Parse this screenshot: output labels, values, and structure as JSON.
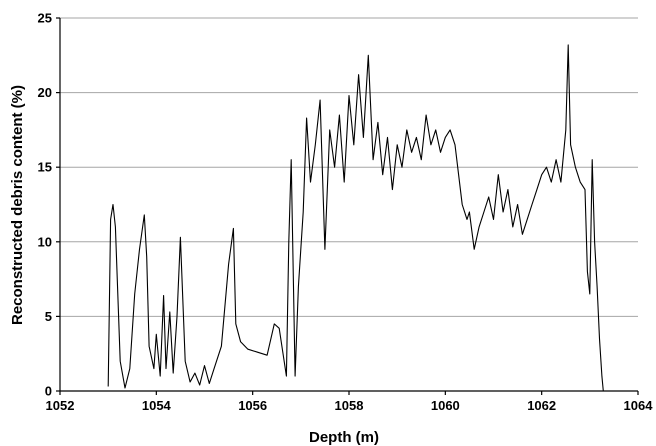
{
  "chart_data": {
    "type": "line",
    "title": "",
    "xlabel": "Depth (m)",
    "ylabel": "Reconstructed debris content (%)",
    "xlim": [
      1052,
      1064
    ],
    "ylim": [
      0,
      25
    ],
    "xticks": [
      1052,
      1054,
      1056,
      1058,
      1060,
      1062,
      1064
    ],
    "yticks": [
      0,
      5,
      10,
      15,
      20,
      25
    ],
    "grid": "horizontal",
    "legend": "none",
    "series": [
      {
        "color": "#000000",
        "x": [
          1053.0,
          1053.05,
          1053.1,
          1053.15,
          1053.25,
          1053.35,
          1053.45,
          1053.55,
          1053.65,
          1053.75,
          1053.8,
          1053.85,
          1053.95,
          1054.0,
          1054.08,
          1054.15,
          1054.2,
          1054.28,
          1054.35,
          1054.43,
          1054.5,
          1054.6,
          1054.7,
          1054.8,
          1054.9,
          1055.0,
          1055.1,
          1055.2,
          1055.35,
          1055.5,
          1055.6,
          1055.65,
          1055.75,
          1055.9,
          1056.1,
          1056.3,
          1056.45,
          1056.55,
          1056.7,
          1056.75,
          1056.8,
          1056.88,
          1056.95,
          1057.05,
          1057.12,
          1057.2,
          1057.3,
          1057.4,
          1057.5,
          1057.6,
          1057.7,
          1057.8,
          1057.9,
          1058.0,
          1058.1,
          1058.2,
          1058.3,
          1058.4,
          1058.5,
          1058.6,
          1058.7,
          1058.8,
          1058.9,
          1059.0,
          1059.1,
          1059.2,
          1059.3,
          1059.4,
          1059.5,
          1059.6,
          1059.7,
          1059.8,
          1059.9,
          1060.0,
          1060.1,
          1060.2,
          1060.35,
          1060.45,
          1060.5,
          1060.6,
          1060.7,
          1060.8,
          1060.9,
          1061.0,
          1061.1,
          1061.2,
          1061.3,
          1061.4,
          1061.5,
          1061.6,
          1061.7,
          1061.8,
          1061.9,
          1062.0,
          1062.1,
          1062.2,
          1062.3,
          1062.4,
          1062.5,
          1062.55,
          1062.6,
          1062.7,
          1062.8,
          1062.9,
          1062.95,
          1063.0,
          1063.05,
          1063.1,
          1063.15,
          1063.2,
          1063.25,
          1063.28
        ],
        "y": [
          0.3,
          11.5,
          12.5,
          11.0,
          2.0,
          0.2,
          1.5,
          6.5,
          9.5,
          11.8,
          9.0,
          3.0,
          1.5,
          3.8,
          1.0,
          6.4,
          1.5,
          5.3,
          1.2,
          5.0,
          10.3,
          2.0,
          0.6,
          1.2,
          0.4,
          1.7,
          0.5,
          1.5,
          3.0,
          8.5,
          10.9,
          4.5,
          3.3,
          2.8,
          2.6,
          2.4,
          4.5,
          4.2,
          1.0,
          10.0,
          15.5,
          1.0,
          7.0,
          12.0,
          18.3,
          14.0,
          16.5,
          19.5,
          9.5,
          17.5,
          15.0,
          18.5,
          14.0,
          19.8,
          16.5,
          21.2,
          17.0,
          22.5,
          15.5,
          18.0,
          14.5,
          17.0,
          13.5,
          16.5,
          15.0,
          17.5,
          16.0,
          17.0,
          15.5,
          18.5,
          16.5,
          17.5,
          16.0,
          17.0,
          17.5,
          16.5,
          12.5,
          11.5,
          12.0,
          9.5,
          11.0,
          12.0,
          13.0,
          11.5,
          14.5,
          12.0,
          13.5,
          11.0,
          12.5,
          10.5,
          11.5,
          12.5,
          13.5,
          14.5,
          15.0,
          14.0,
          15.5,
          14.0,
          17.5,
          23.2,
          16.5,
          15.0,
          14.0,
          13.5,
          8.0,
          6.5,
          15.5,
          10.0,
          7.0,
          3.5,
          1.0,
          0.0
        ]
      }
    ]
  }
}
